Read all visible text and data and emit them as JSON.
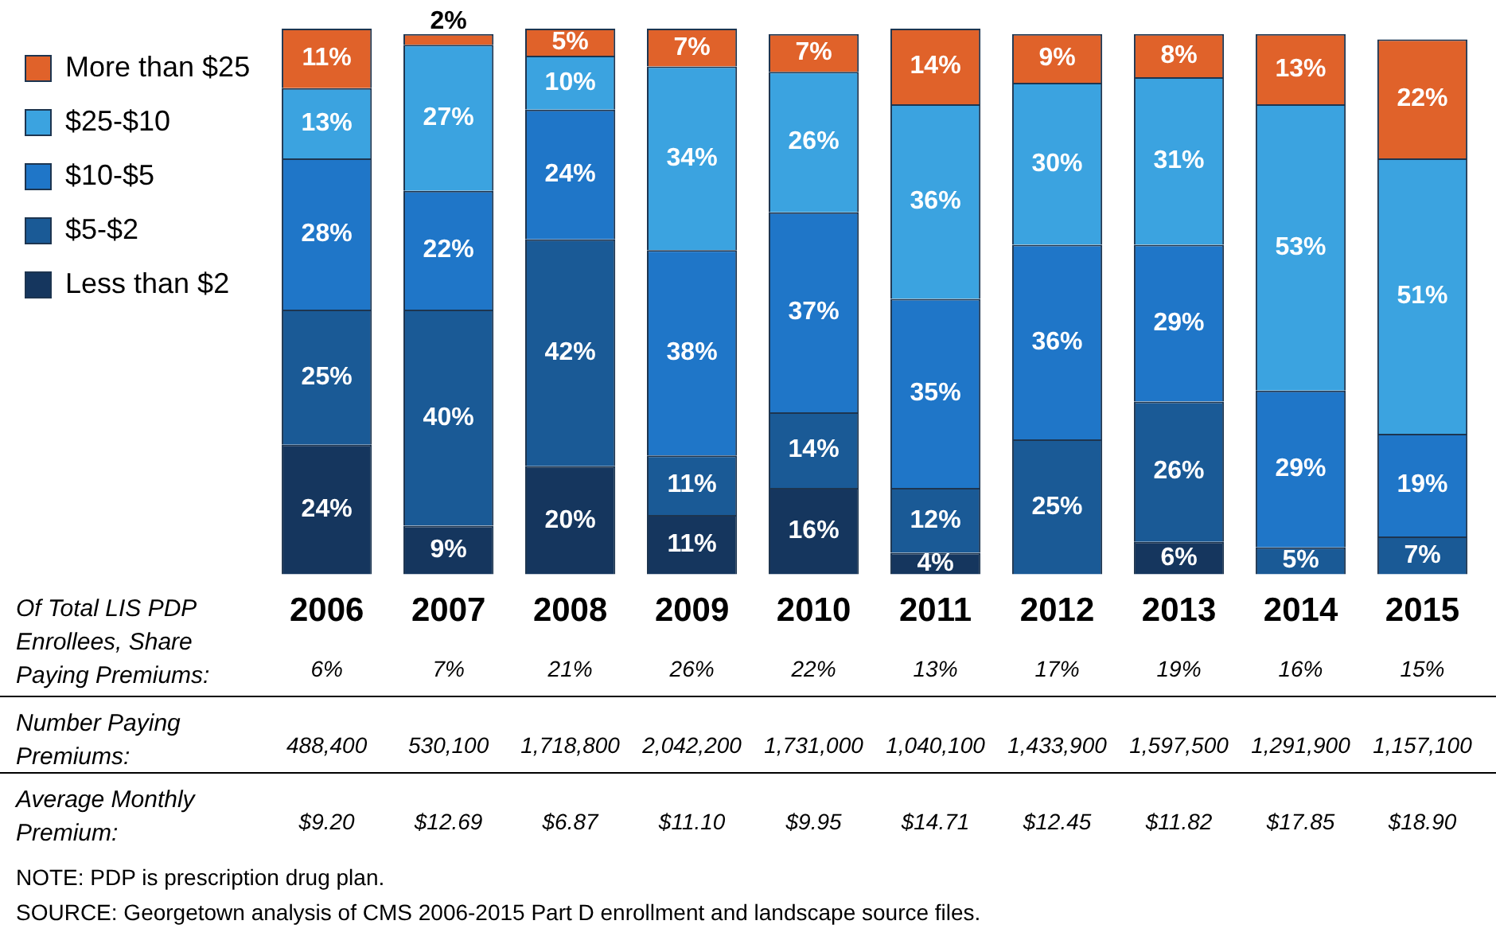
{
  "chart_data": [
    {
      "type": "bar",
      "stacked": true,
      "legend": "top left",
      "categories": [
        "2006",
        "2007",
        "2008",
        "2009",
        "2010",
        "2011",
        "2012",
        "2013",
        "2014",
        "2015"
      ],
      "series": [
        {
          "name": "Less than $2",
          "color": "#15365e",
          "values": [
            24,
            9,
            20,
            11,
            16,
            4,
            null,
            6,
            null,
            null
          ],
          "value_labels": [
            "24%",
            "9%",
            "20%",
            "11%",
            "16%",
            "4%",
            null,
            "6%",
            null,
            null
          ]
        },
        {
          "name": "$5-$2",
          "color": "#1a5a96",
          "values": [
            25,
            40,
            42,
            11,
            14,
            12,
            25,
            26,
            5,
            7
          ],
          "value_labels": [
            "25%",
            "40%",
            "42%",
            "11%",
            "14%",
            "12%",
            "25%",
            "26%",
            "5%",
            "7%"
          ]
        },
        {
          "name": "$10-$5",
          "color": "#1f76c8",
          "values": [
            28,
            22,
            24,
            38,
            37,
            35,
            36,
            29,
            29,
            19
          ],
          "value_labels": [
            "28%",
            "22%",
            "24%",
            "38%",
            "37%",
            "35%",
            "36%",
            "29%",
            "29%",
            "19%"
          ]
        },
        {
          "name": "$25-$10",
          "color": "#3ba3e0",
          "values": [
            13,
            27,
            10,
            34,
            26,
            36,
            30,
            31,
            53,
            51
          ],
          "value_labels": [
            "13%",
            "27%",
            "10%",
            "34%",
            "26%",
            "36%",
            "30%",
            "31%",
            "53%",
            "51%"
          ]
        },
        {
          "name": "More than $25",
          "color": "#e0622a",
          "values": [
            11,
            2,
            5,
            7,
            7,
            14,
            9,
            8,
            13,
            22
          ],
          "value_labels": [
            "11%",
            "2%",
            "5%",
            "7%",
            "7%",
            "14%",
            "9%",
            "8%",
            "13%",
            "22%"
          ]
        }
      ],
      "annotations": [
        "NOTE: PDP is prescription drug plan.",
        "SOURCE: Georgetown analysis of CMS 2006-2015 Part D enrollment and landscape source files."
      ]
    },
    {
      "type": "other",
      "annotations": [
        "Of Total LIS PDP Enrollees, Share Paying Premiums:",
        "6%",
        "7%",
        "21%",
        "26%",
        "22%",
        "13%",
        "17%",
        "19%",
        "16%",
        "15%",
        "Number Paying Premiums:",
        "488,400",
        "530,100",
        "1,718,800",
        "2,042,200",
        "1,731,000",
        "1,040,100",
        "1,433,900",
        "1,597,500",
        "1,291,900",
        "1,157,100",
        "Average Monthly Premium:",
        "$9.20",
        "$12.69",
        "$6.87",
        "$11.10",
        "$9.95",
        "$14.71",
        "$12.45",
        "$11.82",
        "$17.85",
        "$18.90"
      ]
    }
  ]
}
